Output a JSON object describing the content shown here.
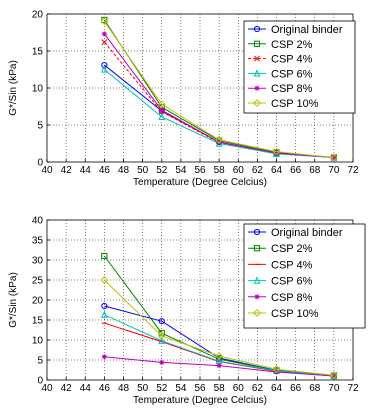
{
  "chart_data": [
    {
      "type": "line",
      "title": "",
      "xlabel": "Temperature (Degree Celcius)",
      "ylabel": "G*/Sin    (kPa)",
      "xlim": [
        40,
        72
      ],
      "ylim": [
        0,
        20
      ],
      "xticks": [
        40,
        42,
        44,
        46,
        48,
        50,
        52,
        54,
        56,
        58,
        60,
        62,
        64,
        66,
        68,
        70,
        72
      ],
      "yticks": [
        0,
        5,
        10,
        15,
        20
      ],
      "grid": true,
      "legend": "top-right",
      "x": [
        46,
        52,
        58,
        64,
        70
      ],
      "series": [
        {
          "name": "Original binder",
          "values": [
            13.1,
            6.9,
            2.7,
            1.2,
            0.6
          ],
          "color": "#0000ff",
          "marker": "circle",
          "dash": ""
        },
        {
          "name": "CSP 2%",
          "values": [
            19.2,
            7.4,
            2.9,
            1.3,
            0.6
          ],
          "color": "#008000",
          "marker": "square",
          "dash": ""
        },
        {
          "name": "CSP 4%",
          "values": [
            16.2,
            6.8,
            2.6,
            1.2,
            0.6
          ],
          "color": "#ff0000",
          "marker": "x",
          "dash": "3,2"
        },
        {
          "name": "CSP 6%",
          "values": [
            12.5,
            6.1,
            2.5,
            1.1,
            0.6
          ],
          "color": "#00bfbf",
          "marker": "triangle",
          "dash": ""
        },
        {
          "name": "CSP 8%",
          "values": [
            17.3,
            7.0,
            2.7,
            1.2,
            0.6
          ],
          "color": "#bf00bf",
          "marker": "star",
          "dash": ""
        },
        {
          "name": "CSP 10%",
          "values": [
            19.0,
            7.8,
            3.0,
            1.4,
            0.6
          ],
          "color": "#bfbf00",
          "marker": "diamond",
          "dash": ""
        }
      ]
    },
    {
      "type": "line",
      "title": "",
      "xlabel": "Temperature (Degree Celcius)",
      "ylabel": "G*/Sin (kPa)",
      "xlim": [
        40,
        72
      ],
      "ylim": [
        0,
        40
      ],
      "xticks": [
        40,
        42,
        44,
        46,
        48,
        50,
        52,
        54,
        56,
        58,
        60,
        62,
        64,
        66,
        68,
        70,
        72
      ],
      "yticks": [
        0,
        5,
        10,
        15,
        20,
        25,
        30,
        35,
        40
      ],
      "grid": true,
      "legend": "top-right",
      "x": [
        46,
        52,
        58,
        64,
        70
      ],
      "series": [
        {
          "name": "Original binder",
          "values": [
            18.5,
            14.7,
            5.5,
            2.4,
            1.1
          ],
          "color": "#0000ff",
          "marker": "circle",
          "dash": ""
        },
        {
          "name": "CSP 2%",
          "values": [
            31.0,
            11.7,
            5.2,
            2.4,
            1.1
          ],
          "color": "#008000",
          "marker": "square",
          "dash": ""
        },
        {
          "name": "CSP 4%",
          "values": [
            14.2,
            9.6,
            4.6,
            2.2,
            1.0
          ],
          "color": "#ff0000",
          "marker": "dash",
          "dash": ""
        },
        {
          "name": "CSP 6%",
          "values": [
            16.3,
            9.8,
            4.7,
            2.3,
            1.0
          ],
          "color": "#00bfbf",
          "marker": "triangle",
          "dash": ""
        },
        {
          "name": "CSP 8%",
          "values": [
            5.8,
            4.4,
            3.6,
            2.0,
            1.0
          ],
          "color": "#bf00bf",
          "marker": "star",
          "dash": ""
        },
        {
          "name": "CSP 10%",
          "values": [
            25.0,
            11.0,
            6.0,
            2.7,
            1.2
          ],
          "color": "#bfbf00",
          "marker": "diamond",
          "dash": ""
        }
      ]
    }
  ]
}
